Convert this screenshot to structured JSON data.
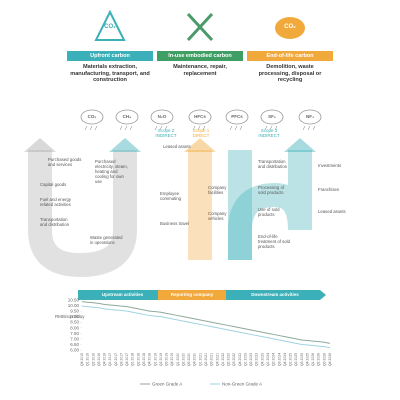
{
  "header": {
    "sections": [
      {
        "icon_label": "CO₂",
        "title": "Upfront carbon",
        "description": "Materials extraction, manufacturing, transport, and construction"
      },
      {
        "title": "In-use embodied carbon",
        "description": "Maintenance, repair, replacement"
      },
      {
        "icon_label": "CO₂",
        "title": "End-of-life carbon",
        "description": "Demolition, waste processing, disposal or recycling"
      }
    ]
  },
  "gases": [
    "CO₂",
    "CH₄",
    "N₂O",
    "HFCs",
    "PFCs",
    "SF₆",
    "NF₃"
  ],
  "scopes": [
    {
      "name": "Scope 2",
      "kind": "INDIRECT"
    },
    {
      "name": "Scope 1",
      "kind": "DIRECT"
    },
    {
      "name": "Scope 3",
      "kind": "INDIRECT"
    }
  ],
  "activities": {
    "upstream": [
      "Purchased goods and services",
      "Capital goods",
      "Fuel and energy related activities",
      "Transportation and distribution",
      "Waste generated in operations"
    ],
    "scope2": [
      "Purchased electricity, steam, heating and cooling for own use"
    ],
    "middle": [
      "Leased assets",
      "Employee commuting",
      "Business travel"
    ],
    "company": [
      "Company facilities",
      "Company vehicles"
    ],
    "downstream": [
      "Transportation and distribution",
      "Processing of sold products",
      "Use of sold products",
      "End-of-life treatment of sold products"
    ],
    "other": [
      "Investments",
      "Franchises",
      "Leased assets"
    ]
  },
  "flow_bar": [
    "Upstream activities",
    "Reporting company",
    "Downstream activities"
  ],
  "chart_data": {
    "type": "line",
    "y_label": "RMB/sq m/day",
    "x": [
      "Q4 2015",
      "Q1 2016",
      "Q2 2016",
      "Q3 2016",
      "Q4 2016",
      "Q1 2017",
      "Q2 2017",
      "Q3 2017",
      "Q4 2017",
      "Q1 2018",
      "Q2 2018",
      "Q3 2018",
      "Q4 2018",
      "Q1 2019",
      "Q2 2019",
      "Q3 2019",
      "Q4 2019",
      "Q1 2020",
      "Q2 2020",
      "Q3 2020",
      "Q4 2020",
      "Q1 2021",
      "Q2 2021",
      "Q3 2021",
      "Q4 2021",
      "Q1 2022",
      "Q2 2022",
      "Q3 2022",
      "Q4 2022",
      "Q1 2023",
      "Q2 2023",
      "Q3 2023",
      "Q4 2023",
      "Q1 2024",
      "Q2 2024",
      "Q3 2024",
      "Q4 2024",
      "Q1 2025",
      "Q2 2025",
      "Q3 2025",
      "Q4 2025",
      "Q1 2026",
      "Q2 2026",
      "Q3 2026",
      "Q4 2026"
    ],
    "series": [
      {
        "name": "Green Grade A",
        "color": "#8fa89a",
        "values": [
          10.35,
          10.3,
          10.25,
          10.2,
          10.1,
          10.05,
          10,
          9.95,
          9.9,
          9.8,
          9.7,
          9.6,
          9.5,
          9.45,
          9.4,
          9.3,
          9.2,
          9.1,
          9,
          8.9,
          8.8,
          8.7,
          8.6,
          8.5,
          8.4,
          8.3,
          8.2,
          8.1,
          8,
          7.9,
          7.8,
          7.7,
          7.6,
          7.5,
          7.4,
          7.3,
          7.2,
          7.1,
          7,
          6.9,
          6.85,
          6.8,
          6.75,
          6.7,
          6.6
        ]
      },
      {
        "name": "Non-Green Grade A",
        "color": "#9fd3e0",
        "values": [
          9.95,
          9.9,
          9.85,
          9.8,
          9.7,
          9.65,
          9.6,
          9.55,
          9.5,
          9.4,
          9.3,
          9.2,
          9.1,
          9.05,
          9,
          8.9,
          8.8,
          8.7,
          8.6,
          8.5,
          8.4,
          8.3,
          8.2,
          8.1,
          8,
          7.9,
          7.8,
          7.7,
          7.6,
          7.5,
          7.4,
          7.3,
          7.2,
          7.1,
          7,
          6.9,
          6.8,
          6.7,
          6.6,
          6.5,
          6.45,
          6.4,
          6.35,
          6.3,
          6.2
        ]
      }
    ],
    "ylim": [
      6,
      10.5
    ],
    "yticks": [
      {
        "value": 10.5,
        "label": "10.50"
      },
      {
        "value": 10,
        "label": "10.00"
      },
      {
        "value": 9.5,
        "label": "9.50"
      },
      {
        "value": 9,
        "label": "9.00"
      },
      {
        "value": 8.5,
        "label": "8.50"
      },
      {
        "value": 8,
        "label": "8.00"
      },
      {
        "value": 7.5,
        "label": "7.50"
      },
      {
        "value": 7,
        "label": "7.00"
      },
      {
        "value": 6.5,
        "label": "6.50"
      },
      {
        "value": 6,
        "label": "6.00"
      }
    ]
  }
}
